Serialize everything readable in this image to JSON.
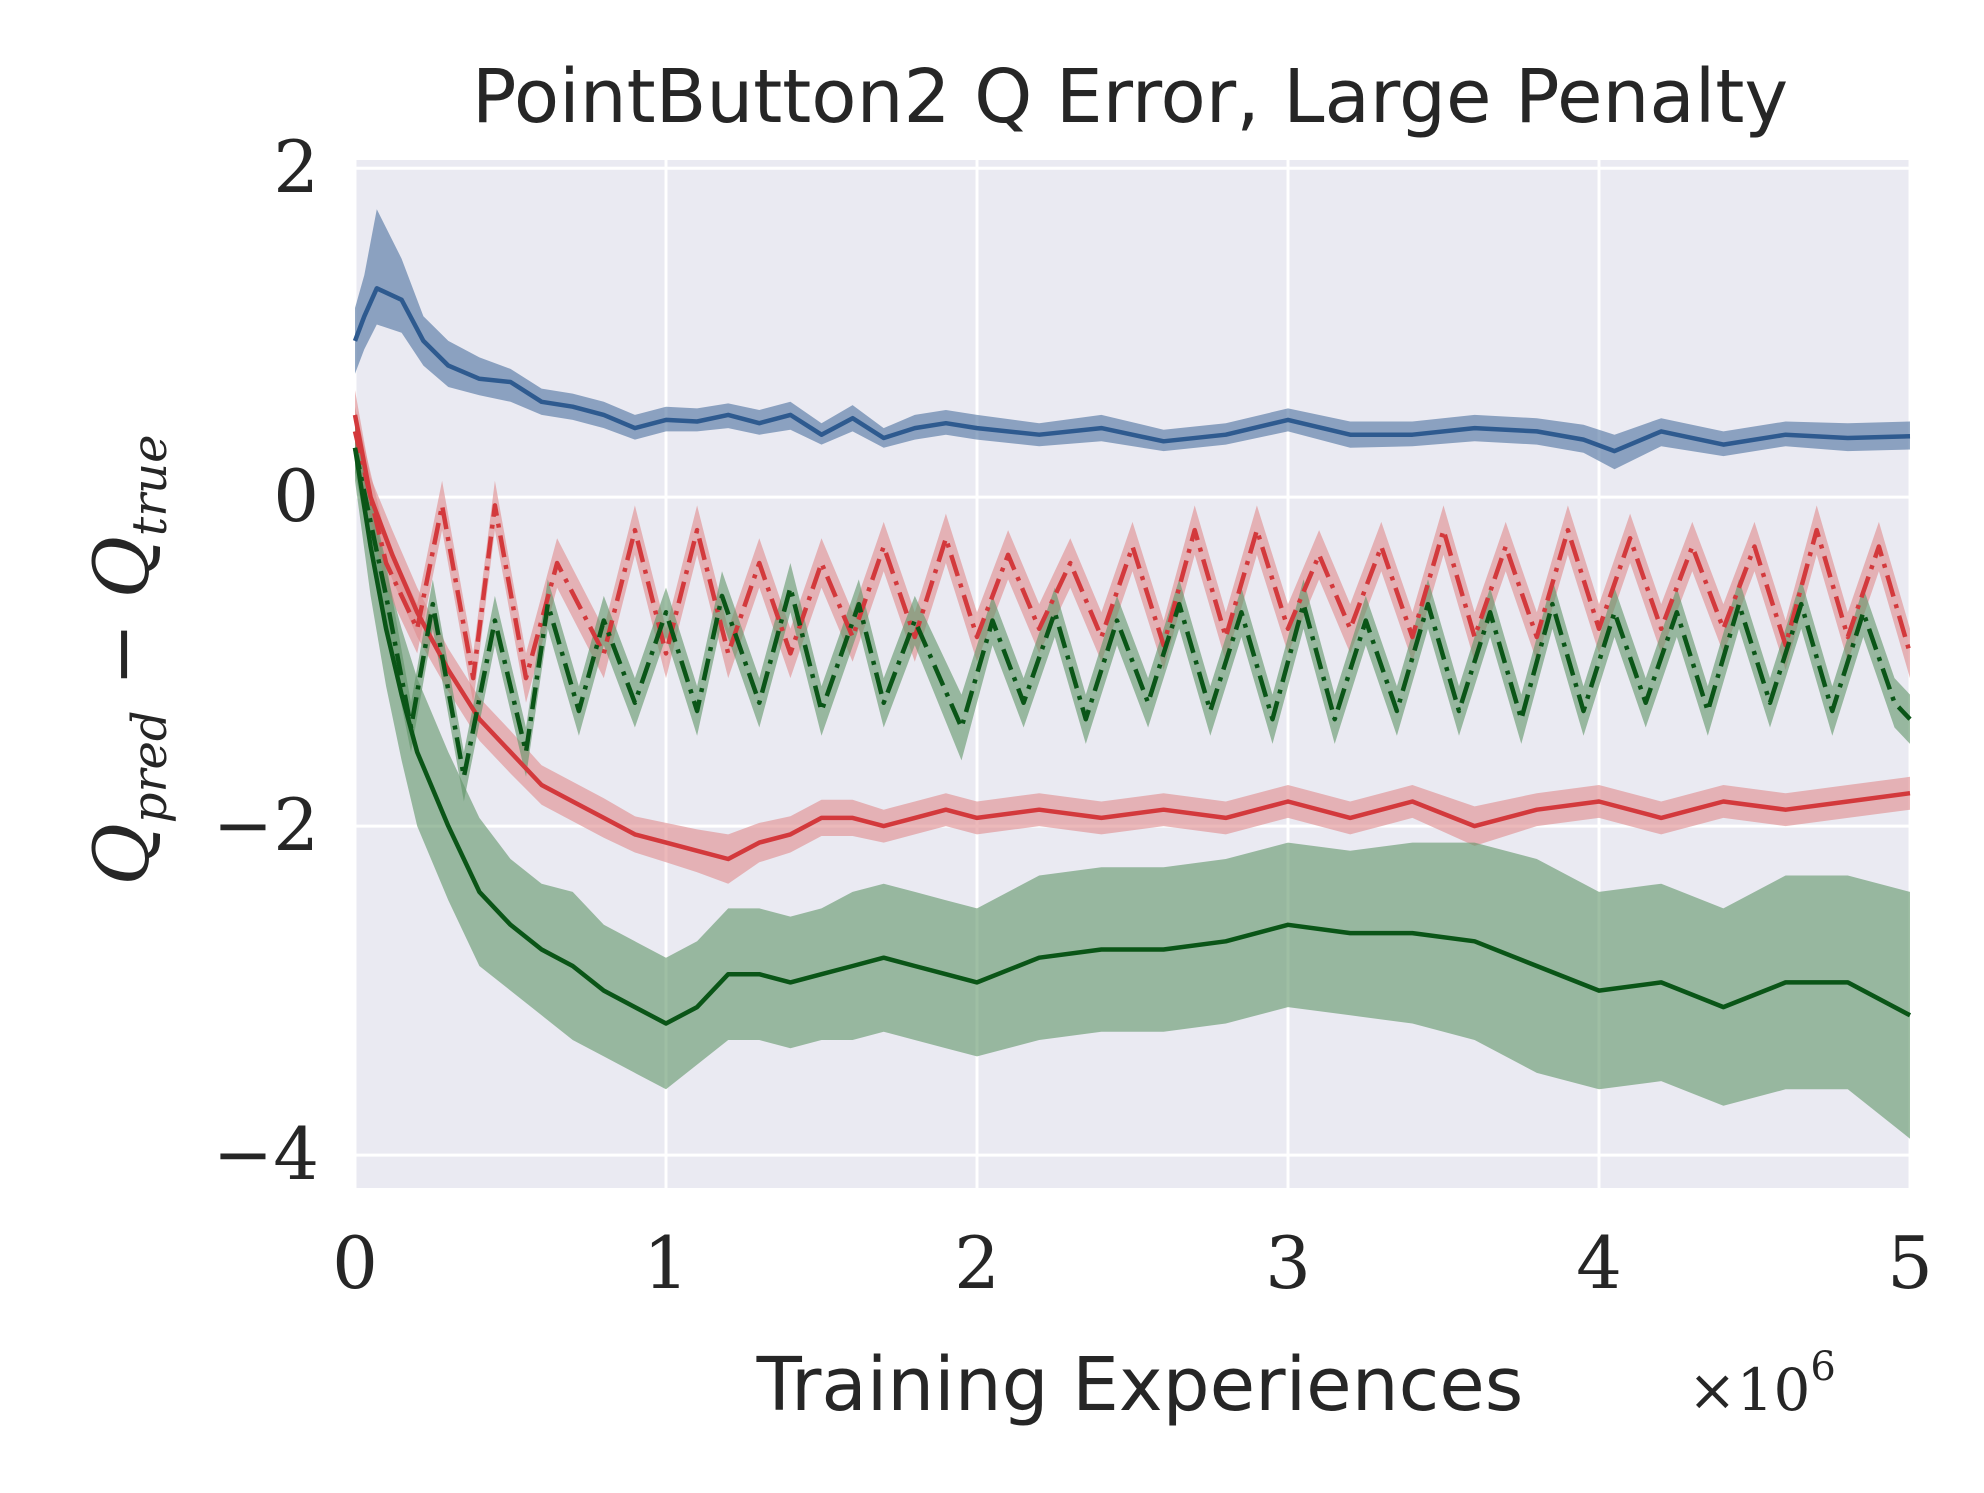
{
  "chart_data": {
    "type": "line",
    "title": "PointButton2 Q Error, Large Penalty",
    "xlabel": "Training Experiences",
    "x_multiplier": "×10",
    "x_multiplier_exp": "6",
    "ylabel": {
      "q1": "Q",
      "sub1": "pred",
      "minus": " − ",
      "q2": "Q",
      "sub2": "true"
    },
    "xlim": [
      0,
      5
    ],
    "ylim": [
      -4.2,
      2.05
    ],
    "xticks": [
      0,
      1,
      2,
      3,
      4,
      5
    ],
    "xtick_labels": [
      "0",
      "1",
      "2",
      "3",
      "4",
      "5"
    ],
    "yticks": [
      -4,
      -2,
      0,
      2
    ],
    "ytick_labels": [
      "−4",
      "−2",
      "0",
      "2"
    ],
    "grid": true,
    "background": "#eaeaf2",
    "series": [
      {
        "name": "blue-solid",
        "color": "#2e5a8f",
        "band_color": "#4b6f9e",
        "style": "solid",
        "x": [
          0,
          0.03,
          0.07,
          0.15,
          0.22,
          0.3,
          0.4,
          0.5,
          0.6,
          0.7,
          0.8,
          0.9,
          1.0,
          1.1,
          1.2,
          1.3,
          1.4,
          1.5,
          1.6,
          1.7,
          1.8,
          1.9,
          2.0,
          2.2,
          2.4,
          2.6,
          2.8,
          3.0,
          3.2,
          3.4,
          3.6,
          3.8,
          3.95,
          4.05,
          4.2,
          4.4,
          4.6,
          4.8,
          5.0
        ],
        "y": [
          0.95,
          1.1,
          1.27,
          1.2,
          0.95,
          0.8,
          0.72,
          0.7,
          0.58,
          0.55,
          0.5,
          0.42,
          0.47,
          0.46,
          0.5,
          0.45,
          0.5,
          0.38,
          0.48,
          0.36,
          0.42,
          0.45,
          0.42,
          0.38,
          0.42,
          0.34,
          0.38,
          0.47,
          0.38,
          0.38,
          0.42,
          0.4,
          0.35,
          0.28,
          0.4,
          0.32,
          0.38,
          0.36,
          0.37
        ],
        "lower": [
          0.75,
          0.9,
          1.05,
          1.0,
          0.8,
          0.67,
          0.62,
          0.58,
          0.5,
          0.47,
          0.42,
          0.35,
          0.4,
          0.4,
          0.42,
          0.38,
          0.41,
          0.32,
          0.4,
          0.3,
          0.35,
          0.38,
          0.35,
          0.31,
          0.34,
          0.28,
          0.32,
          0.4,
          0.3,
          0.31,
          0.34,
          0.32,
          0.27,
          0.17,
          0.31,
          0.25,
          0.31,
          0.28,
          0.29
        ],
        "upper": [
          1.15,
          1.35,
          1.75,
          1.45,
          1.1,
          0.95,
          0.85,
          0.78,
          0.66,
          0.63,
          0.58,
          0.5,
          0.55,
          0.54,
          0.57,
          0.53,
          0.58,
          0.45,
          0.56,
          0.42,
          0.5,
          0.53,
          0.5,
          0.45,
          0.5,
          0.41,
          0.45,
          0.54,
          0.46,
          0.46,
          0.5,
          0.48,
          0.44,
          0.38,
          0.48,
          0.4,
          0.46,
          0.45,
          0.46
        ]
      },
      {
        "name": "red-solid",
        "color": "#d3393c",
        "band_color": "#e08a8c",
        "style": "solid",
        "x": [
          0,
          0.05,
          0.12,
          0.2,
          0.3,
          0.4,
          0.5,
          0.6,
          0.7,
          0.8,
          0.9,
          1.0,
          1.1,
          1.2,
          1.3,
          1.4,
          1.5,
          1.6,
          1.7,
          1.8,
          1.9,
          2.0,
          2.2,
          2.4,
          2.6,
          2.8,
          3.0,
          3.2,
          3.4,
          3.6,
          3.8,
          4.0,
          4.2,
          4.4,
          4.6,
          4.8,
          5.0
        ],
        "y": [
          0.5,
          0.0,
          -0.35,
          -0.7,
          -1.05,
          -1.35,
          -1.55,
          -1.75,
          -1.85,
          -1.95,
          -2.05,
          -2.1,
          -2.15,
          -2.2,
          -2.1,
          -2.05,
          -1.95,
          -1.95,
          -2.0,
          -1.95,
          -1.9,
          -1.95,
          -1.9,
          -1.95,
          -1.9,
          -1.95,
          -1.85,
          -1.95,
          -1.85,
          -2.0,
          -1.9,
          -1.85,
          -1.95,
          -1.85,
          -1.9,
          -1.85,
          -1.8
        ],
        "lower": [
          0.3,
          -0.15,
          -0.5,
          -0.85,
          -1.18,
          -1.48,
          -1.68,
          -1.87,
          -1.97,
          -2.07,
          -2.16,
          -2.22,
          -2.28,
          -2.35,
          -2.22,
          -2.16,
          -2.06,
          -2.06,
          -2.1,
          -2.05,
          -2.0,
          -2.05,
          -2.0,
          -2.05,
          -2.0,
          -2.05,
          -1.95,
          -2.05,
          -1.95,
          -2.12,
          -2.0,
          -1.95,
          -2.05,
          -1.95,
          -2.0,
          -1.95,
          -1.9
        ],
        "upper": [
          0.65,
          0.12,
          -0.2,
          -0.55,
          -0.92,
          -1.22,
          -1.42,
          -1.63,
          -1.73,
          -1.83,
          -1.94,
          -1.98,
          -2.02,
          -2.05,
          -1.98,
          -1.94,
          -1.84,
          -1.84,
          -1.9,
          -1.85,
          -1.8,
          -1.85,
          -1.8,
          -1.85,
          -1.8,
          -1.85,
          -1.75,
          -1.85,
          -1.75,
          -1.88,
          -1.8,
          -1.75,
          -1.85,
          -1.75,
          -1.8,
          -1.75,
          -1.7
        ]
      },
      {
        "name": "green-solid",
        "color": "#0a5517",
        "band_color": "#5f9468",
        "style": "solid",
        "x": [
          0,
          0.05,
          0.1,
          0.15,
          0.2,
          0.3,
          0.4,
          0.5,
          0.6,
          0.7,
          0.8,
          0.9,
          1.0,
          1.1,
          1.2,
          1.3,
          1.4,
          1.5,
          1.6,
          1.7,
          1.8,
          1.9,
          2.0,
          2.2,
          2.4,
          2.6,
          2.8,
          3.0,
          3.2,
          3.4,
          3.6,
          3.8,
          4.0,
          4.2,
          4.4,
          4.6,
          4.8,
          5.0
        ],
        "y": [
          0.3,
          -0.3,
          -0.8,
          -1.2,
          -1.55,
          -2.0,
          -2.4,
          -2.6,
          -2.75,
          -2.85,
          -3.0,
          -3.1,
          -3.2,
          -3.1,
          -2.9,
          -2.9,
          -2.95,
          -2.9,
          -2.85,
          -2.8,
          -2.85,
          -2.9,
          -2.95,
          -2.8,
          -2.75,
          -2.75,
          -2.7,
          -2.6,
          -2.65,
          -2.65,
          -2.7,
          -2.85,
          -3.0,
          -2.95,
          -3.1,
          -2.95,
          -2.95,
          -3.15
        ],
        "lower": [
          0.1,
          -0.6,
          -1.15,
          -1.6,
          -2.0,
          -2.45,
          -2.85,
          -3.0,
          -3.15,
          -3.3,
          -3.4,
          -3.5,
          -3.6,
          -3.45,
          -3.3,
          -3.3,
          -3.35,
          -3.3,
          -3.3,
          -3.25,
          -3.3,
          -3.35,
          -3.4,
          -3.3,
          -3.25,
          -3.25,
          -3.2,
          -3.1,
          -3.15,
          -3.2,
          -3.3,
          -3.5,
          -3.6,
          -3.55,
          -3.7,
          -3.6,
          -3.6,
          -3.9
        ],
        "upper": [
          0.5,
          0.0,
          -0.45,
          -0.8,
          -1.1,
          -1.55,
          -1.95,
          -2.2,
          -2.35,
          -2.4,
          -2.6,
          -2.7,
          -2.8,
          -2.7,
          -2.5,
          -2.5,
          -2.55,
          -2.5,
          -2.4,
          -2.35,
          -2.4,
          -2.45,
          -2.5,
          -2.3,
          -2.25,
          -2.25,
          -2.2,
          -2.1,
          -2.15,
          -2.1,
          -2.1,
          -2.2,
          -2.4,
          -2.35,
          -2.5,
          -2.3,
          -2.3,
          -2.4
        ]
      },
      {
        "name": "red-dashdot",
        "color": "#d3393c",
        "band_color": "#e08a8c",
        "style": "dashdot",
        "x": [
          0,
          0.1,
          0.2,
          0.28,
          0.38,
          0.45,
          0.55,
          0.65,
          0.8,
          0.9,
          1.0,
          1.1,
          1.2,
          1.3,
          1.4,
          1.5,
          1.6,
          1.7,
          1.8,
          1.9,
          2.0,
          2.1,
          2.2,
          2.3,
          2.4,
          2.5,
          2.6,
          2.7,
          2.8,
          2.9,
          3.0,
          3.1,
          3.2,
          3.3,
          3.4,
          3.5,
          3.6,
          3.7,
          3.8,
          3.9,
          4.0,
          4.1,
          4.2,
          4.3,
          4.4,
          4.5,
          4.6,
          4.7,
          4.8,
          4.9,
          5.0
        ],
        "y": [
          0.4,
          -0.4,
          -0.8,
          -0.05,
          -1.1,
          -0.05,
          -1.1,
          -0.4,
          -0.95,
          -0.2,
          -0.95,
          -0.2,
          -0.95,
          -0.4,
          -0.95,
          -0.4,
          -0.85,
          -0.3,
          -0.85,
          -0.25,
          -0.85,
          -0.35,
          -0.8,
          -0.4,
          -0.85,
          -0.3,
          -0.9,
          -0.2,
          -0.85,
          -0.2,
          -0.8,
          -0.35,
          -0.8,
          -0.3,
          -0.85,
          -0.2,
          -0.85,
          -0.3,
          -0.85,
          -0.2,
          -0.8,
          -0.25,
          -0.8,
          -0.3,
          -0.8,
          -0.3,
          -0.9,
          -0.2,
          -0.85,
          -0.3,
          -0.95
        ],
        "lower": [
          0.25,
          -0.55,
          -0.95,
          -0.2,
          -1.25,
          -0.2,
          -1.25,
          -0.55,
          -1.1,
          -0.35,
          -1.1,
          -0.35,
          -1.1,
          -0.55,
          -1.1,
          -0.55,
          -1.0,
          -0.45,
          -1.0,
          -0.4,
          -1.0,
          -0.5,
          -0.95,
          -0.55,
          -1.0,
          -0.45,
          -1.05,
          -0.35,
          -1.0,
          -0.35,
          -0.95,
          -0.5,
          -0.95,
          -0.45,
          -1.0,
          -0.35,
          -1.0,
          -0.45,
          -1.0,
          -0.35,
          -0.95,
          -0.4,
          -0.95,
          -0.45,
          -0.95,
          -0.45,
          -1.05,
          -0.35,
          -1.0,
          -0.45,
          -1.1
        ],
        "upper": [
          0.55,
          -0.25,
          -0.65,
          0.1,
          -0.95,
          0.1,
          -0.95,
          -0.25,
          -0.8,
          -0.05,
          -0.8,
          -0.05,
          -0.8,
          -0.25,
          -0.8,
          -0.25,
          -0.7,
          -0.15,
          -0.7,
          -0.1,
          -0.7,
          -0.2,
          -0.65,
          -0.25,
          -0.7,
          -0.15,
          -0.75,
          -0.05,
          -0.7,
          -0.05,
          -0.65,
          -0.2,
          -0.65,
          -0.15,
          -0.7,
          -0.05,
          -0.7,
          -0.15,
          -0.7,
          -0.05,
          -0.65,
          -0.1,
          -0.65,
          -0.15,
          -0.65,
          -0.15,
          -0.75,
          -0.05,
          -0.7,
          -0.15,
          -0.8
        ]
      },
      {
        "name": "green-dashdot",
        "color": "#0a5517",
        "band_color": "#5f9468",
        "style": "dashdot",
        "x": [
          0,
          0.1,
          0.18,
          0.25,
          0.35,
          0.45,
          0.55,
          0.62,
          0.72,
          0.8,
          0.9,
          1.0,
          1.1,
          1.18,
          1.3,
          1.4,
          1.5,
          1.62,
          1.7,
          1.8,
          1.95,
          2.05,
          2.15,
          2.25,
          2.35,
          2.45,
          2.55,
          2.65,
          2.75,
          2.85,
          2.95,
          3.05,
          3.15,
          3.25,
          3.35,
          3.45,
          3.55,
          3.65,
          3.75,
          3.85,
          3.95,
          4.05,
          4.15,
          4.25,
          4.35,
          4.45,
          4.55,
          4.65,
          4.75,
          4.85,
          4.95,
          5.0
        ],
        "y": [
          0.3,
          -0.6,
          -1.4,
          -0.65,
          -1.7,
          -0.75,
          -1.55,
          -0.65,
          -1.3,
          -0.75,
          -1.25,
          -0.7,
          -1.3,
          -0.6,
          -1.25,
          -0.55,
          -1.3,
          -0.65,
          -1.25,
          -0.75,
          -1.4,
          -0.75,
          -1.25,
          -0.7,
          -1.35,
          -0.75,
          -1.25,
          -0.65,
          -1.3,
          -0.7,
          -1.35,
          -0.65,
          -1.35,
          -0.75,
          -1.3,
          -0.65,
          -1.3,
          -0.7,
          -1.35,
          -0.65,
          -1.3,
          -0.7,
          -1.25,
          -0.7,
          -1.3,
          -0.65,
          -1.25,
          -0.65,
          -1.3,
          -0.7,
          -1.25,
          -1.35
        ],
        "lower": [
          0.15,
          -0.8,
          -1.55,
          -0.8,
          -1.85,
          -0.9,
          -1.7,
          -0.8,
          -1.45,
          -0.9,
          -1.4,
          -0.85,
          -1.45,
          -0.75,
          -1.4,
          -0.7,
          -1.45,
          -0.8,
          -1.4,
          -0.9,
          -1.6,
          -0.9,
          -1.4,
          -0.85,
          -1.5,
          -0.9,
          -1.4,
          -0.8,
          -1.45,
          -0.85,
          -1.5,
          -0.8,
          -1.5,
          -0.9,
          -1.45,
          -0.8,
          -1.45,
          -0.85,
          -1.5,
          -0.8,
          -1.45,
          -0.85,
          -1.4,
          -0.85,
          -1.45,
          -0.8,
          -1.4,
          -0.8,
          -1.45,
          -0.85,
          -1.4,
          -1.5
        ],
        "upper": [
          0.45,
          -0.4,
          -1.25,
          -0.5,
          -1.55,
          -0.6,
          -1.4,
          -0.5,
          -1.15,
          -0.6,
          -1.1,
          -0.55,
          -1.15,
          -0.45,
          -1.1,
          -0.4,
          -1.15,
          -0.5,
          -1.1,
          -0.6,
          -1.2,
          -0.6,
          -1.1,
          -0.55,
          -1.2,
          -0.6,
          -1.1,
          -0.5,
          -1.15,
          -0.55,
          -1.2,
          -0.5,
          -1.2,
          -0.6,
          -1.15,
          -0.5,
          -1.15,
          -0.55,
          -1.2,
          -0.5,
          -1.15,
          -0.55,
          -1.1,
          -0.55,
          -1.15,
          -0.5,
          -1.1,
          -0.5,
          -1.15,
          -0.55,
          -1.1,
          -1.2
        ]
      }
    ]
  }
}
